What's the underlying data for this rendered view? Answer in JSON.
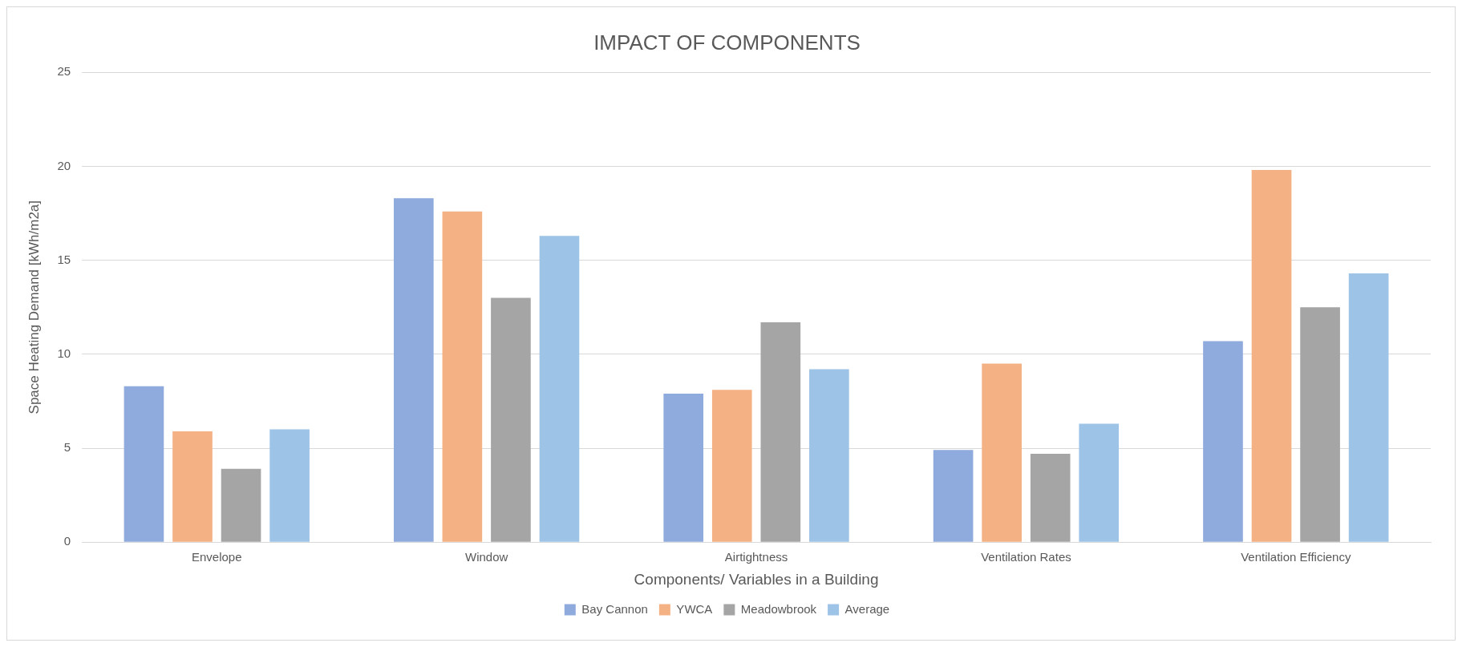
{
  "chart_data": {
    "type": "bar",
    "title": "IMPACT OF COMPONENTS",
    "xlabel": "Components/ Variables in a Building",
    "ylabel": "Space Heating Demand [kWh/m2a]",
    "categories": [
      "Envelope",
      "Window",
      "Airtightness",
      "Ventilation Rates",
      "Ventilation Efficiency"
    ],
    "series": [
      {
        "name": "Bay Cannon",
        "color": "#8faadc",
        "values": [
          8.3,
          18.3,
          7.9,
          4.9,
          10.7
        ]
      },
      {
        "name": "YWCA",
        "color": "#f4b183",
        "values": [
          5.9,
          17.6,
          8.1,
          9.5,
          19.8
        ]
      },
      {
        "name": "Meadowbrook",
        "color": "#a5a5a5",
        "values": [
          3.9,
          13.0,
          11.7,
          4.7,
          12.5
        ]
      },
      {
        "name": "Average",
        "color": "#9dc3e6",
        "values": [
          6.0,
          16.3,
          9.2,
          6.3,
          14.3
        ]
      }
    ],
    "ylim": [
      0,
      25
    ],
    "yticks": [
      0,
      5,
      10,
      15,
      20,
      25
    ],
    "grid": "y",
    "legend": "bottom"
  }
}
